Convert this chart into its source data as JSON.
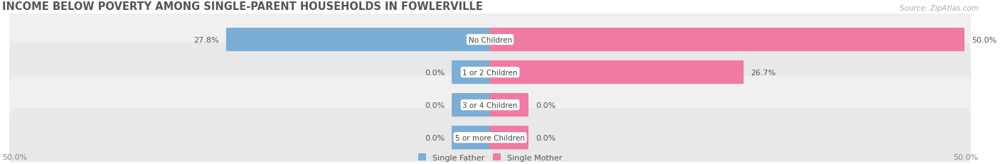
{
  "title": "INCOME BELOW POVERTY AMONG SINGLE-PARENT HOUSEHOLDS IN FOWLERVILLE",
  "source": "Source: ZipAtlas.com",
  "categories": [
    "No Children",
    "1 or 2 Children",
    "3 or 4 Children",
    "5 or more Children"
  ],
  "father_values": [
    27.8,
    0.0,
    0.0,
    0.0
  ],
  "mother_values": [
    50.0,
    26.7,
    0.0,
    0.0
  ],
  "father_color": "#7aaed6",
  "mother_color": "#f07aa0",
  "row_bg_color_odd": "#f0f0f0",
  "row_bg_color_even": "#e8e8e8",
  "row_border_color": "#d8d8d8",
  "max_val": 50.0,
  "stub_val": 4.0,
  "axis_label_left": "50.0%",
  "axis_label_right": "50.0%",
  "legend_father": "Single Father",
  "legend_mother": "Single Mother",
  "title_fontsize": 10.5,
  "source_fontsize": 7.5,
  "label_fontsize": 8,
  "cat_fontsize": 7.5
}
